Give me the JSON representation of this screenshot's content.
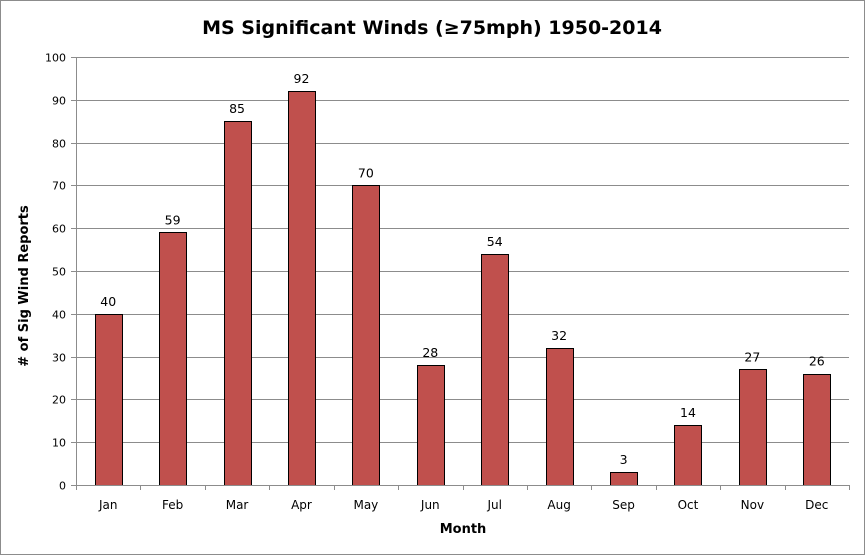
{
  "chart_data": {
    "type": "bar",
    "title": "MS Significant Winds (≥75mph) 1950-2014",
    "xlabel": "Month",
    "ylabel": "# of Sig Wind Reports",
    "categories": [
      "Jan",
      "Feb",
      "Mar",
      "Apr",
      "May",
      "Jun",
      "Jul",
      "Aug",
      "Sep",
      "Oct",
      "Nov",
      "Dec"
    ],
    "values": [
      40,
      59,
      85,
      92,
      70,
      28,
      54,
      32,
      3,
      14,
      27,
      26
    ],
    "ylim": [
      0,
      100
    ],
    "yticks": [
      0,
      10,
      20,
      30,
      40,
      50,
      60,
      70,
      80,
      90,
      100
    ],
    "grid": true,
    "legend": "none",
    "data_labels": true,
    "colors": {
      "bar_fill": "#c0504d",
      "bar_stroke": "#000000",
      "grid": "#8c8c8c"
    }
  }
}
